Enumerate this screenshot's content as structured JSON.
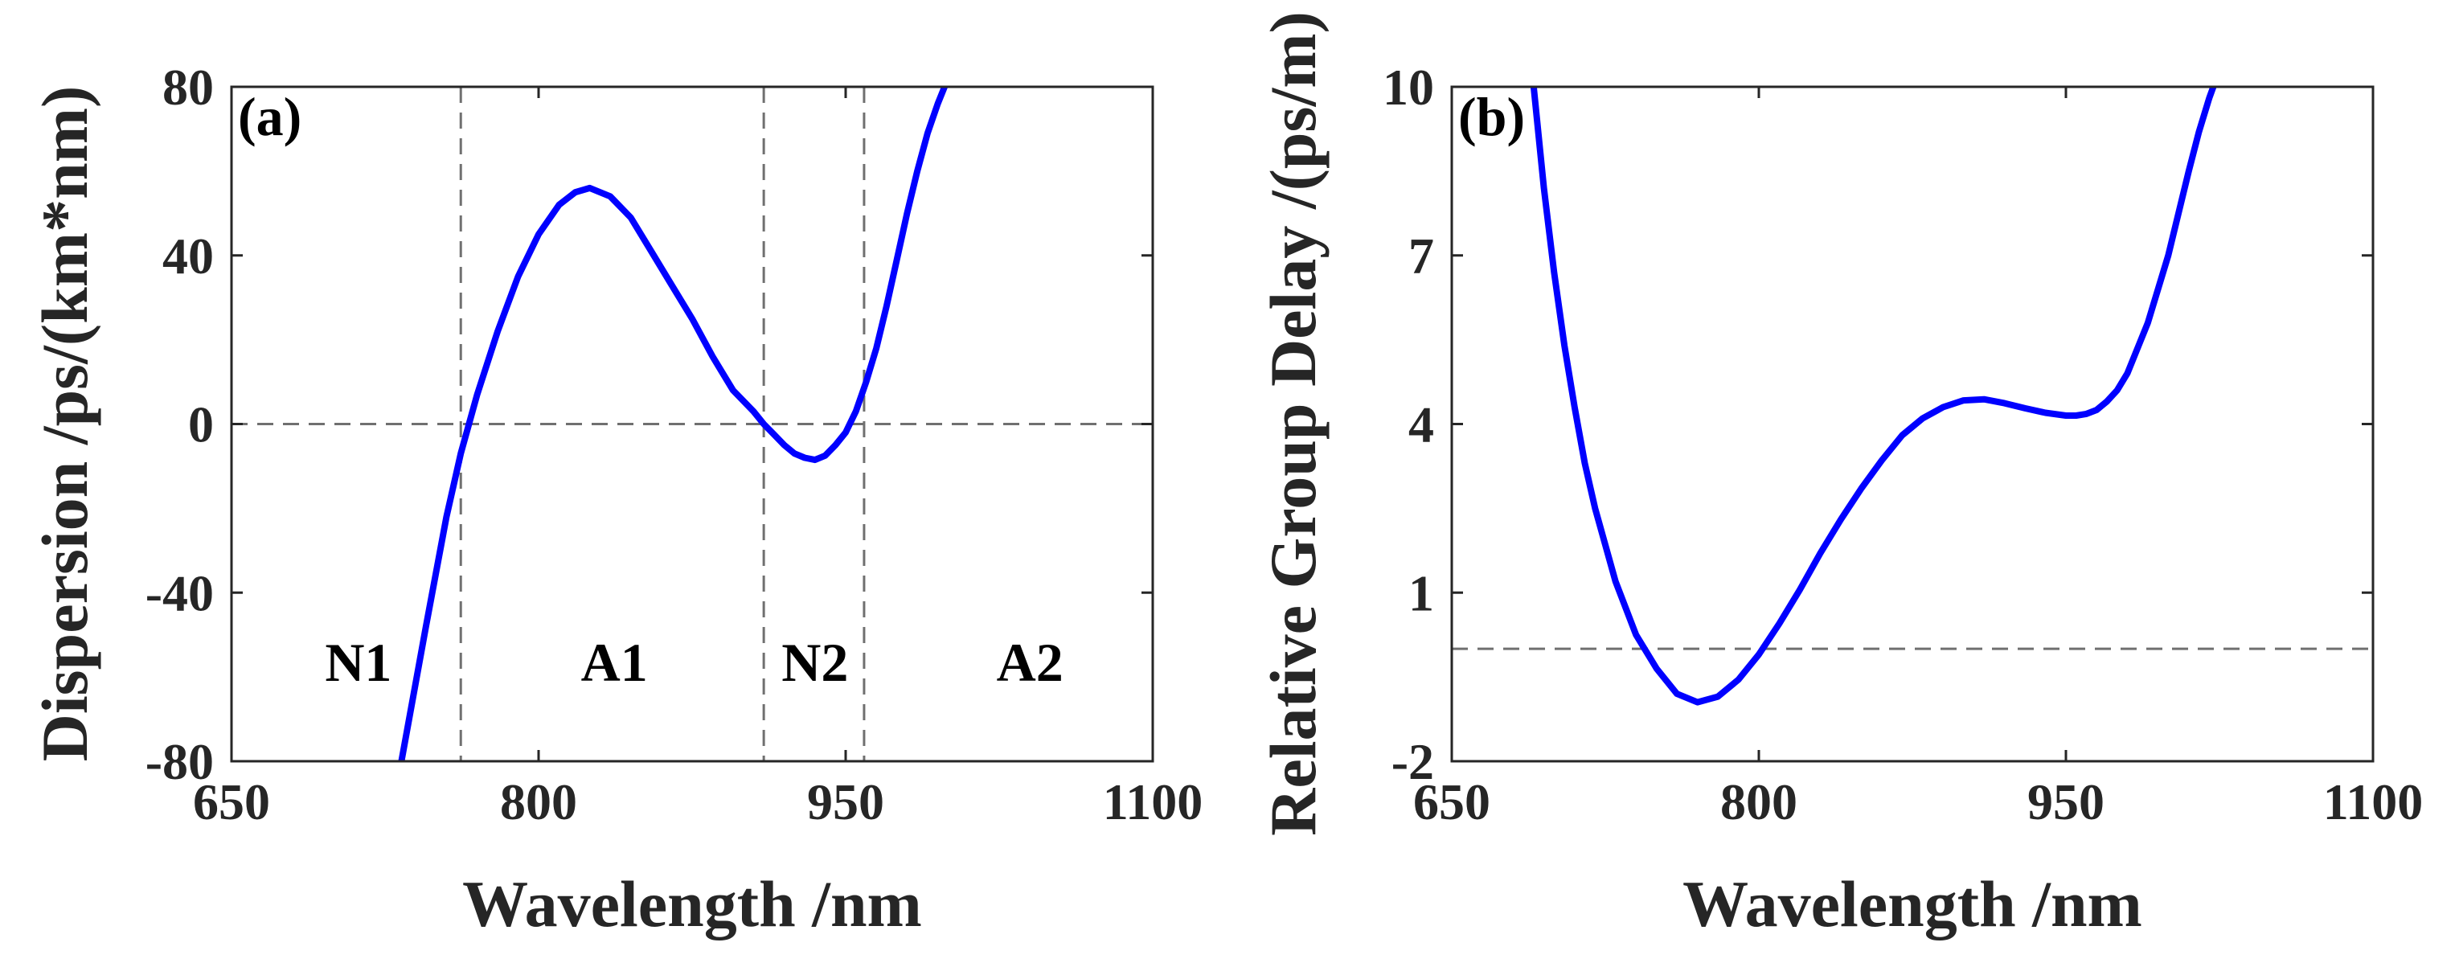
{
  "chart_data": [
    {
      "panel": "(a)",
      "type": "line",
      "xlabel": "Wavelength /nm",
      "ylabel": "Dispersion /ps/(km*nm)",
      "xlim": [
        650,
        1100
      ],
      "ylim": [
        -80,
        80
      ],
      "xticks": [
        "650",
        "800",
        "950",
        "1100"
      ],
      "yticks": [
        "-80",
        "-40",
        "0",
        "40",
        "80"
      ],
      "grid": false,
      "series": [
        {
          "name": "Dispersion",
          "color": "#0000ff",
          "x": [
            733,
            745,
            755,
            762,
            770,
            780,
            790,
            800,
            810,
            818,
            825,
            835,
            845,
            855,
            865,
            875,
            885,
            895,
            905,
            910,
            915,
            920,
            925,
            930,
            935,
            940,
            945,
            950,
            955,
            960,
            965,
            970,
            975,
            980,
            985,
            990,
            995,
            1000
          ],
          "y": [
            -80,
            -48,
            -22,
            -7,
            7,
            22,
            35,
            45,
            52,
            55,
            56,
            54,
            49,
            41,
            33,
            25,
            16,
            8,
            3,
            0,
            -2.5,
            -5,
            -7,
            -8,
            -8.5,
            -7.5,
            -5,
            -2,
            3,
            10,
            18,
            28,
            39,
            50,
            60,
            69,
            76,
            82
          ]
        }
      ],
      "reference_lines": [
        {
          "orientation": "horizontal",
          "value": 0
        },
        {
          "orientation": "vertical",
          "value": 762
        },
        {
          "orientation": "vertical",
          "value": 910
        },
        {
          "orientation": "vertical",
          "value": 959
        }
      ],
      "annotations": [
        {
          "text": "N1",
          "x": 712,
          "y": -58
        },
        {
          "text": "A1",
          "x": 837,
          "y": -58
        },
        {
          "text": "N2",
          "x": 935,
          "y": -58
        },
        {
          "text": "A2",
          "x": 1040,
          "y": -58
        }
      ]
    },
    {
      "panel": "(b)",
      "type": "line",
      "xlabel": "Wavelength /nm",
      "ylabel": "Relative Group Delay /(ps/m)",
      "xlim": [
        650,
        1100
      ],
      "ylim": [
        -2,
        10
      ],
      "xticks": [
        "650",
        "800",
        "950",
        "1100"
      ],
      "yticks": [
        "-2",
        "1",
        "4",
        "7",
        "10"
      ],
      "grid": false,
      "series": [
        {
          "name": "Relative Group Delay",
          "color": "#0000ff",
          "x": [
            690,
            695,
            700,
            705,
            710,
            715,
            720,
            730,
            740,
            750,
            760,
            770,
            780,
            790,
            800,
            810,
            820,
            830,
            840,
            850,
            860,
            870,
            880,
            890,
            900,
            910,
            920,
            930,
            940,
            950,
            955,
            960,
            965,
            970,
            975,
            980,
            990,
            1000,
            1010,
            1015,
            1020,
            1025
          ],
          "y": [
            10,
            8.2,
            6.7,
            5.4,
            4.3,
            3.3,
            2.5,
            1.2,
            0.25,
            -0.35,
            -0.8,
            -0.95,
            -0.85,
            -0.55,
            -0.1,
            0.45,
            1.05,
            1.7,
            2.3,
            2.85,
            3.35,
            3.8,
            4.1,
            4.3,
            4.42,
            4.44,
            4.37,
            4.28,
            4.2,
            4.15,
            4.15,
            4.18,
            4.25,
            4.4,
            4.6,
            4.9,
            5.8,
            7.0,
            8.5,
            9.2,
            9.8,
            10.3
          ]
        }
      ],
      "reference_lines": [
        {
          "orientation": "horizontal",
          "value": 0
        }
      ],
      "annotations": []
    }
  ]
}
